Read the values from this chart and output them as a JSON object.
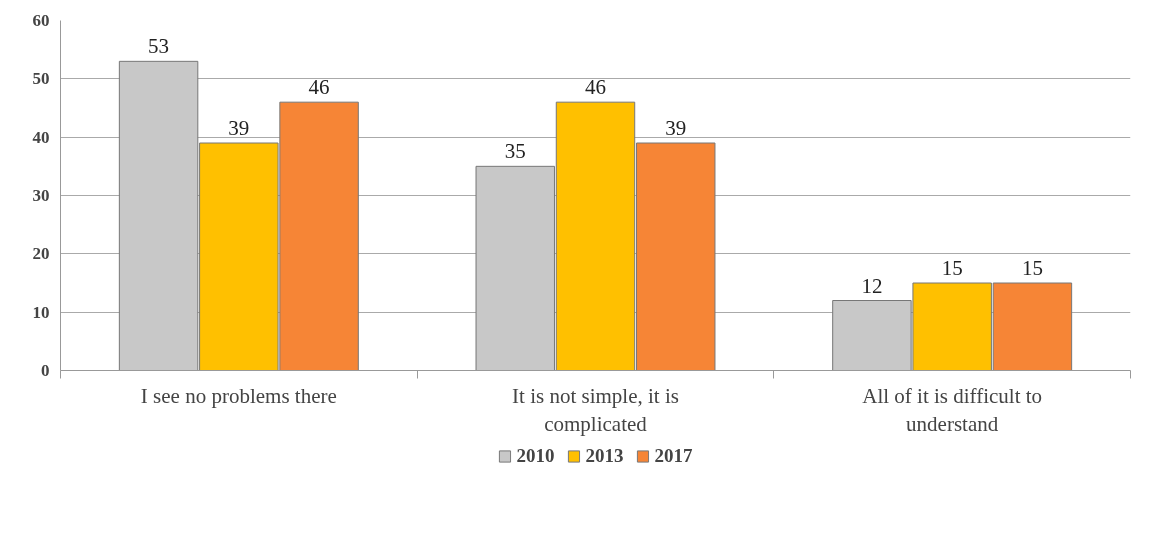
{
  "chart_data": {
    "type": "bar",
    "categories": [
      "I see no problems there",
      "It is not simple, it is complicated",
      "All of it is difficult to understand"
    ],
    "series": [
      {
        "name": "2010",
        "color": "#c8c8c8",
        "values": [
          53,
          35,
          12
        ]
      },
      {
        "name": "2013",
        "color": "#ffc000",
        "values": [
          39,
          46,
          15
        ]
      },
      {
        "name": "2017",
        "color": "#f68536",
        "values": [
          46,
          39,
          15
        ]
      }
    ],
    "ylim": [
      0,
      60
    ],
    "yticks": [
      0,
      10,
      20,
      30,
      40,
      50,
      60
    ],
    "grid": "y",
    "legend": "bottom",
    "data_labels": true
  }
}
